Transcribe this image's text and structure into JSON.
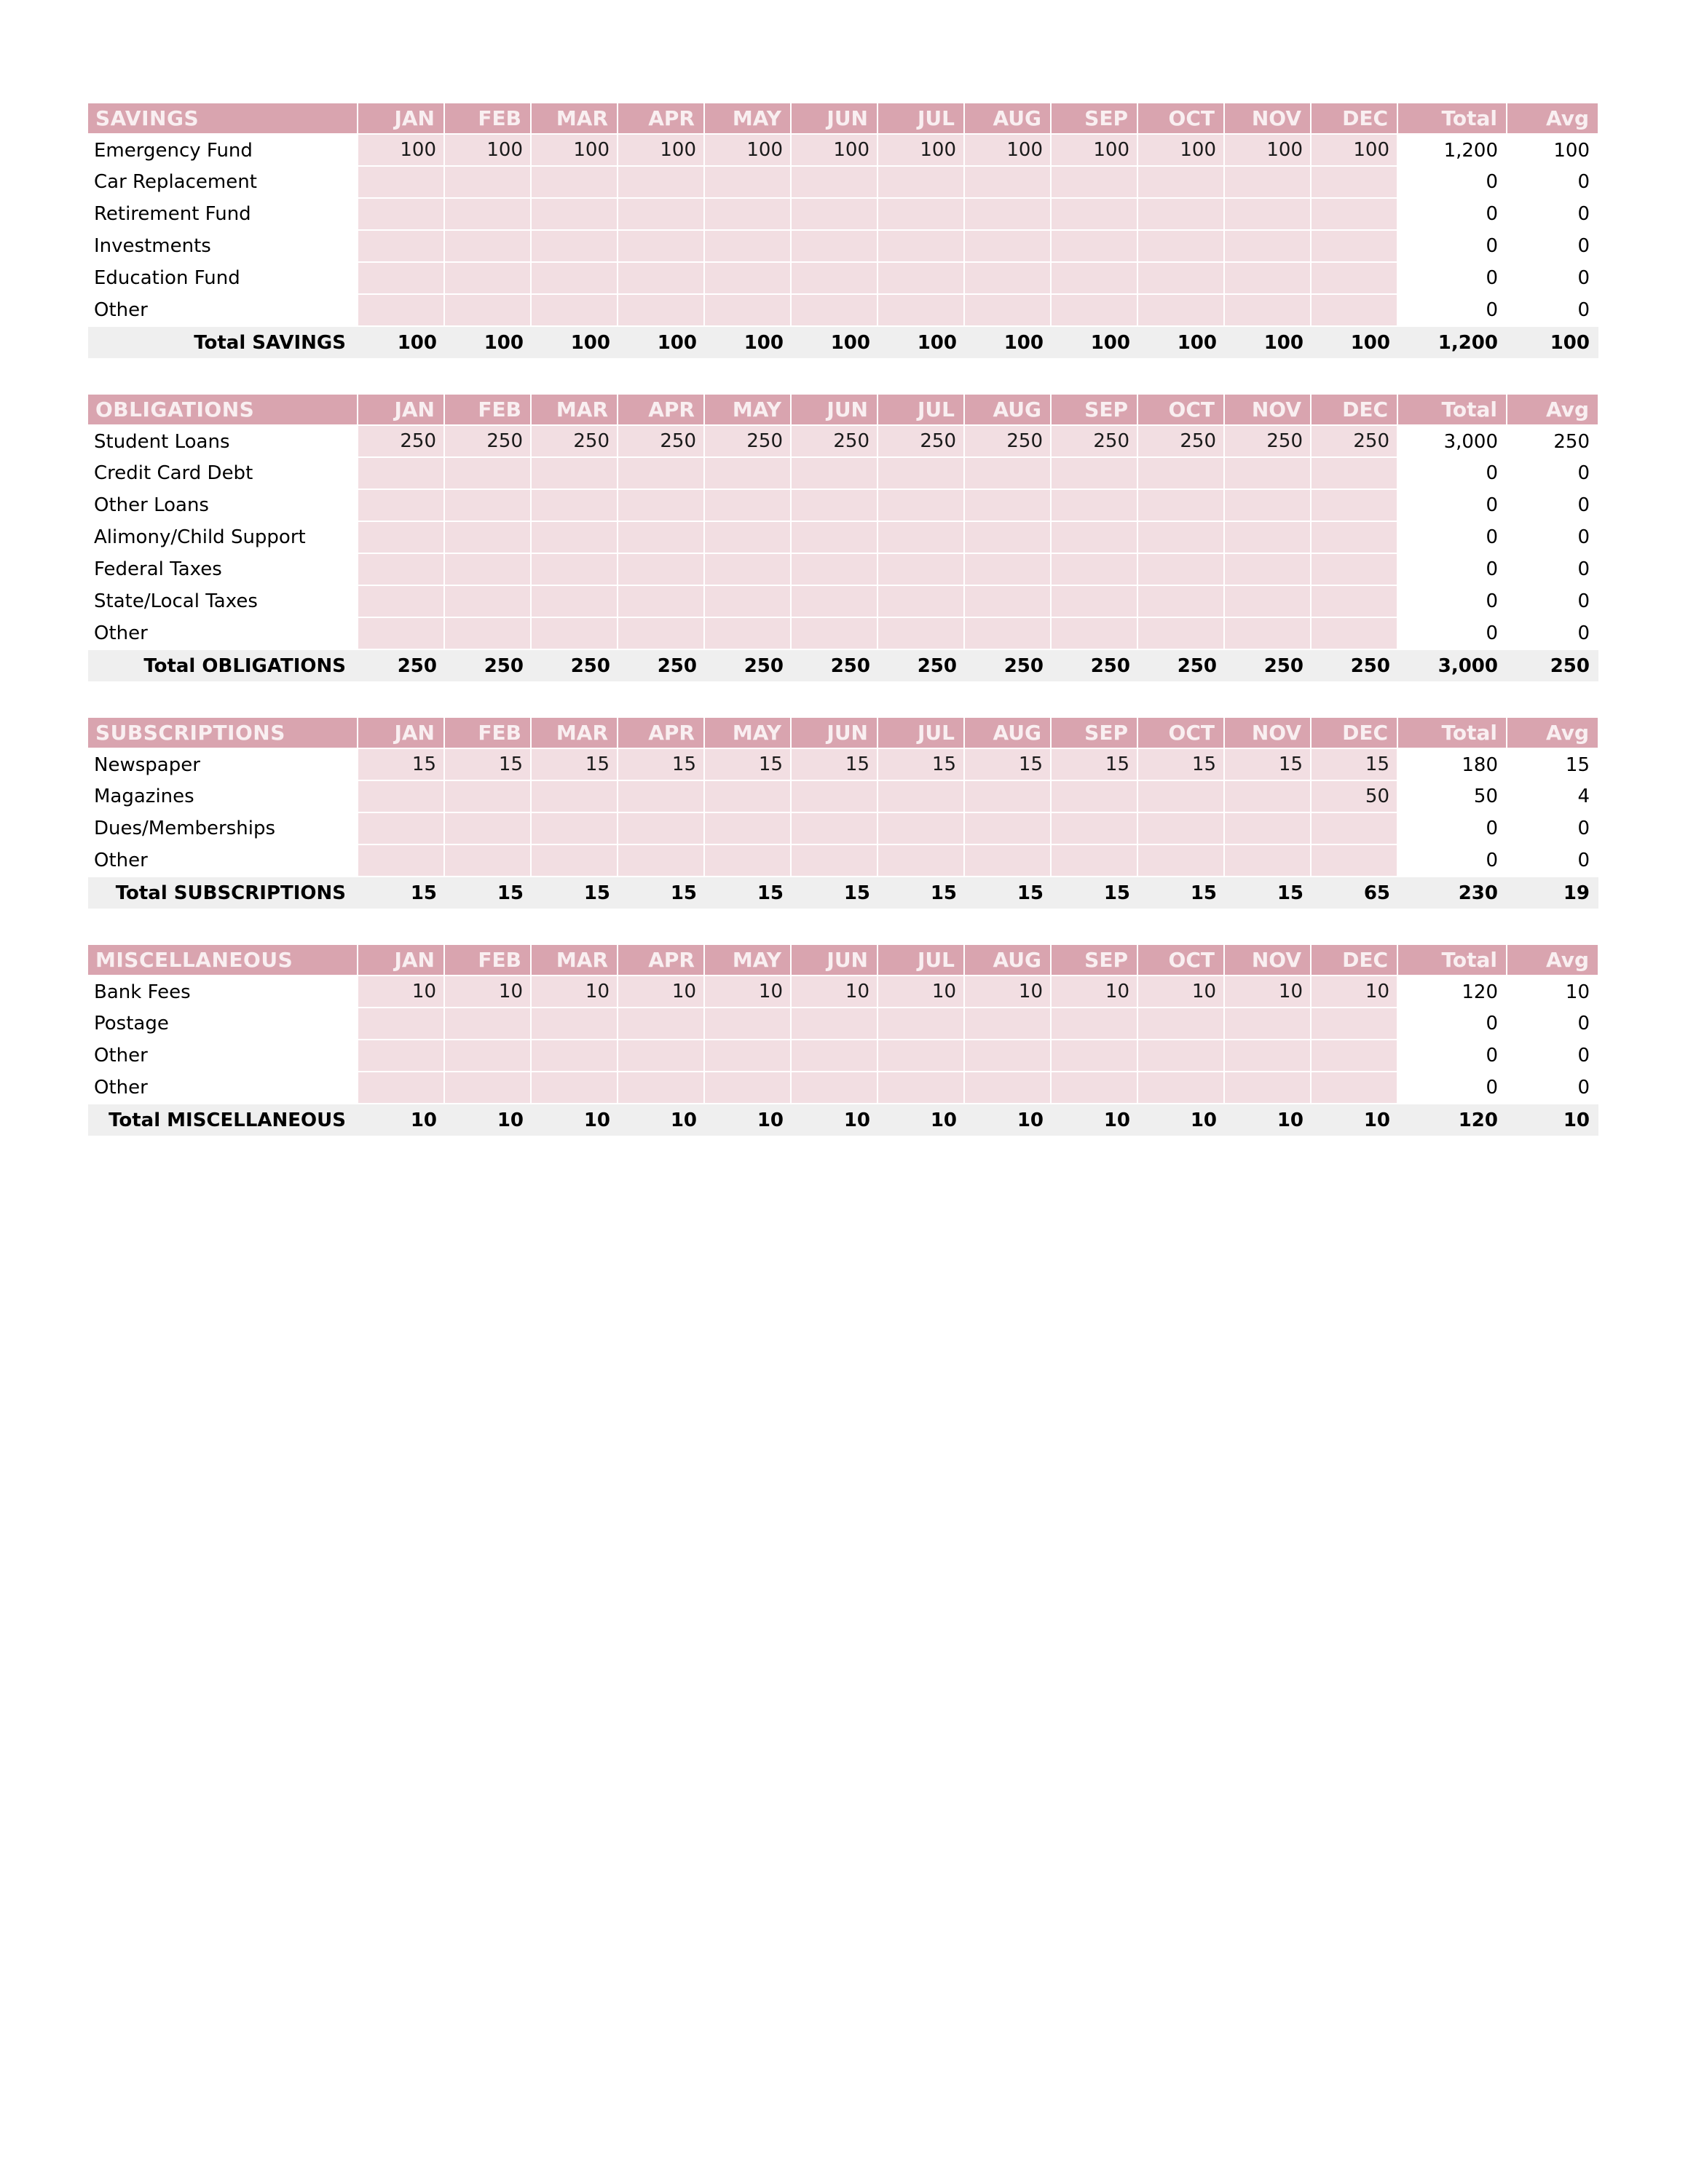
{
  "columns": {
    "total": "Total",
    "avg": "Avg"
  },
  "months": [
    "JAN",
    "FEB",
    "MAR",
    "APR",
    "MAY",
    "JUN",
    "JUL",
    "AUG",
    "SEP",
    "OCT",
    "NOV",
    "DEC"
  ],
  "colors": {
    "header_pink": "#D9A4AF",
    "cell_pink": "#F2DEE2",
    "total_gray": "#EFEFEF",
    "header_text": "#F9EFF1"
  },
  "sections": [
    {
      "id": "savings",
      "title": "SAVINGS",
      "rows": [
        {
          "label": "Emergency Fund",
          "values": [
            "100",
            "100",
            "100",
            "100",
            "100",
            "100",
            "100",
            "100",
            "100",
            "100",
            "100",
            "100"
          ],
          "total": "1,200",
          "avg": "100"
        },
        {
          "label": "Car Replacement",
          "values": [
            "",
            "",
            "",
            "",
            "",
            "",
            "",
            "",
            "",
            "",
            "",
            ""
          ],
          "total": "0",
          "avg": "0"
        },
        {
          "label": "Retirement Fund",
          "values": [
            "",
            "",
            "",
            "",
            "",
            "",
            "",
            "",
            "",
            "",
            "",
            ""
          ],
          "total": "0",
          "avg": "0"
        },
        {
          "label": "Investments",
          "values": [
            "",
            "",
            "",
            "",
            "",
            "",
            "",
            "",
            "",
            "",
            "",
            ""
          ],
          "total": "0",
          "avg": "0"
        },
        {
          "label": "Education Fund",
          "values": [
            "",
            "",
            "",
            "",
            "",
            "",
            "",
            "",
            "",
            "",
            "",
            ""
          ],
          "total": "0",
          "avg": "0"
        },
        {
          "label": "Other",
          "values": [
            "",
            "",
            "",
            "",
            "",
            "",
            "",
            "",
            "",
            "",
            "",
            ""
          ],
          "total": "0",
          "avg": "0"
        }
      ],
      "total_row": {
        "label": "Total SAVINGS",
        "values": [
          "100",
          "100",
          "100",
          "100",
          "100",
          "100",
          "100",
          "100",
          "100",
          "100",
          "100",
          "100"
        ],
        "total": "1,200",
        "avg": "100"
      }
    },
    {
      "id": "obligations",
      "title": "OBLIGATIONS",
      "rows": [
        {
          "label": "Student Loans",
          "values": [
            "250",
            "250",
            "250",
            "250",
            "250",
            "250",
            "250",
            "250",
            "250",
            "250",
            "250",
            "250"
          ],
          "total": "3,000",
          "avg": "250"
        },
        {
          "label": "Credit Card Debt",
          "values": [
            "",
            "",
            "",
            "",
            "",
            "",
            "",
            "",
            "",
            "",
            "",
            ""
          ],
          "total": "0",
          "avg": "0"
        },
        {
          "label": "Other Loans",
          "values": [
            "",
            "",
            "",
            "",
            "",
            "",
            "",
            "",
            "",
            "",
            "",
            ""
          ],
          "total": "0",
          "avg": "0"
        },
        {
          "label": "Alimony/Child Support",
          "values": [
            "",
            "",
            "",
            "",
            "",
            "",
            "",
            "",
            "",
            "",
            "",
            ""
          ],
          "total": "0",
          "avg": "0"
        },
        {
          "label": "Federal Taxes",
          "values": [
            "",
            "",
            "",
            "",
            "",
            "",
            "",
            "",
            "",
            "",
            "",
            ""
          ],
          "total": "0",
          "avg": "0"
        },
        {
          "label": "State/Local Taxes",
          "values": [
            "",
            "",
            "",
            "",
            "",
            "",
            "",
            "",
            "",
            "",
            "",
            ""
          ],
          "total": "0",
          "avg": "0"
        },
        {
          "label": "Other",
          "values": [
            "",
            "",
            "",
            "",
            "",
            "",
            "",
            "",
            "",
            "",
            "",
            ""
          ],
          "total": "0",
          "avg": "0"
        }
      ],
      "total_row": {
        "label": "Total OBLIGATIONS",
        "values": [
          "250",
          "250",
          "250",
          "250",
          "250",
          "250",
          "250",
          "250",
          "250",
          "250",
          "250",
          "250"
        ],
        "total": "3,000",
        "avg": "250"
      }
    },
    {
      "id": "subscriptions",
      "title": "SUBSCRIPTIONS",
      "rows": [
        {
          "label": "Newspaper",
          "values": [
            "15",
            "15",
            "15",
            "15",
            "15",
            "15",
            "15",
            "15",
            "15",
            "15",
            "15",
            "15"
          ],
          "total": "180",
          "avg": "15"
        },
        {
          "label": "Magazines",
          "values": [
            "",
            "",
            "",
            "",
            "",
            "",
            "",
            "",
            "",
            "",
            "",
            "50"
          ],
          "total": "50",
          "avg": "4"
        },
        {
          "label": "Dues/Memberships",
          "values": [
            "",
            "",
            "",
            "",
            "",
            "",
            "",
            "",
            "",
            "",
            "",
            ""
          ],
          "total": "0",
          "avg": "0"
        },
        {
          "label": "Other",
          "values": [
            "",
            "",
            "",
            "",
            "",
            "",
            "",
            "",
            "",
            "",
            "",
            ""
          ],
          "total": "0",
          "avg": "0"
        }
      ],
      "total_row": {
        "label": "Total SUBSCRIPTIONS",
        "values": [
          "15",
          "15",
          "15",
          "15",
          "15",
          "15",
          "15",
          "15",
          "15",
          "15",
          "15",
          "65"
        ],
        "total": "230",
        "avg": "19"
      }
    },
    {
      "id": "miscellaneous",
      "title": "MISCELLANEOUS",
      "rows": [
        {
          "label": "Bank Fees",
          "values": [
            "10",
            "10",
            "10",
            "10",
            "10",
            "10",
            "10",
            "10",
            "10",
            "10",
            "10",
            "10"
          ],
          "total": "120",
          "avg": "10"
        },
        {
          "label": "Postage",
          "values": [
            "",
            "",
            "",
            "",
            "",
            "",
            "",
            "",
            "",
            "",
            "",
            ""
          ],
          "total": "0",
          "avg": "0"
        },
        {
          "label": "Other",
          "values": [
            "",
            "",
            "",
            "",
            "",
            "",
            "",
            "",
            "",
            "",
            "",
            ""
          ],
          "total": "0",
          "avg": "0"
        },
        {
          "label": "Other",
          "values": [
            "",
            "",
            "",
            "",
            "",
            "",
            "",
            "",
            "",
            "",
            "",
            ""
          ],
          "total": "0",
          "avg": "0"
        }
      ],
      "total_row": {
        "label": "Total MISCELLANEOUS",
        "values": [
          "10",
          "10",
          "10",
          "10",
          "10",
          "10",
          "10",
          "10",
          "10",
          "10",
          "10",
          "10"
        ],
        "total": "120",
        "avg": "10"
      }
    }
  ]
}
